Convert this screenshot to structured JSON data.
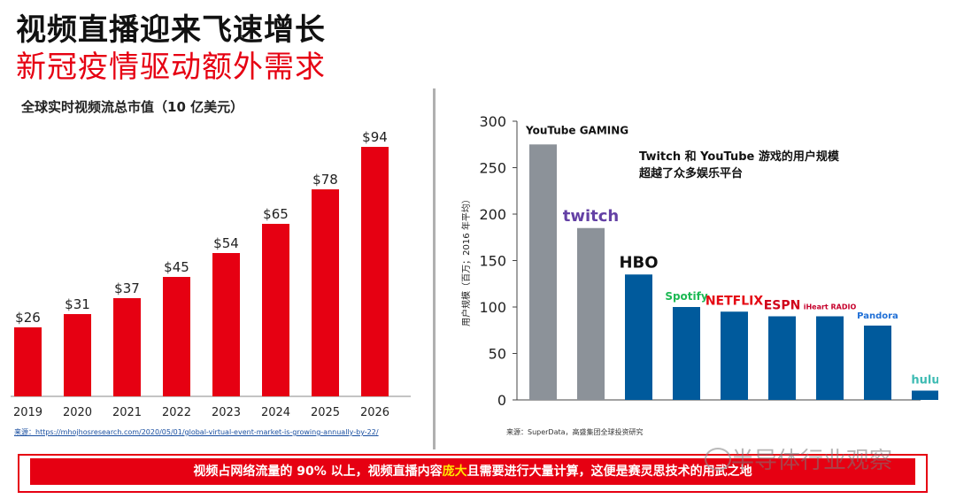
{
  "header": {
    "title": "视频直播迎来飞速增长",
    "subtitle": "新冠疫情驱动额外需求"
  },
  "left_chart_title": "全球实时视频流总市值（10 亿美元）",
  "left_source": "来源：https://mhojhosresearch.com/2020/05/01/global-virtual-event-market-is-growing-annually-by-22/",
  "right_source": "来源：SuperData，高盛集团全球投资研究",
  "right_note": [
    "Twitch 和 YouTube 游戏的用户规模",
    "超越了众多娱乐平台"
  ],
  "banner": {
    "before": "视频占网络流量的 90% 以上，视频直播内容",
    "highlight": "庞大",
    "after": "且需要进行大量计算，这便是赛灵思技术的用武之地"
  },
  "watermark": "半导体行业观察",
  "colors": {
    "red": "#e60012",
    "gray_bar": "#8c9299",
    "blue_bar": "#005a9c"
  },
  "chart_data": [
    {
      "type": "bar",
      "categories": [
        "2019",
        "2020",
        "2021",
        "2022",
        "2023",
        "2024",
        "2025",
        "2026"
      ],
      "values": [
        26,
        31,
        37,
        45,
        54,
        65,
        78,
        94
      ],
      "data_labels": [
        "$26",
        "$31",
        "$37",
        "$45",
        "$54",
        "$65",
        "$78",
        "$94"
      ],
      "title": "全球实时视频流总市值（10 亿美元）",
      "ylim": [
        0,
        100
      ],
      "grid": false,
      "color": "#e60012"
    },
    {
      "type": "bar",
      "categories": [
        "YouTube GAMING",
        "twitch",
        "HBO",
        "Spotify",
        "NETFLIX",
        "ESPN",
        "iHeart RADIO",
        "Pandora",
        "hulu"
      ],
      "values": [
        275,
        185,
        135,
        100,
        95,
        90,
        90,
        80,
        10
      ],
      "bar_colors": [
        "#8c9299",
        "#8c9299",
        "#005a9c",
        "#005a9c",
        "#005a9c",
        "#005a9c",
        "#005a9c",
        "#005a9c",
        "#005a9c"
      ],
      "ylabel": "用户规模（百万；2016 年平均）",
      "yticks": [
        0,
        50,
        100,
        150,
        200,
        250,
        300
      ],
      "ylim": [
        0,
        300
      ],
      "grid": false
    }
  ]
}
